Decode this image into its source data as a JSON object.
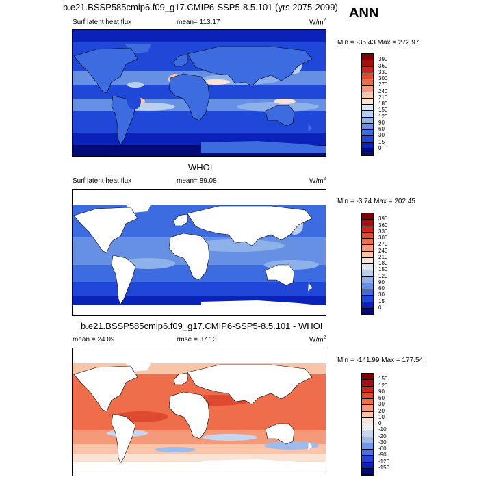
{
  "season": "ANN",
  "panels": [
    {
      "title": "b.e21.BSSP585cmip6.f09_g17.CMIP6-SSP5-8.5.101 (yrs 2075-2099)",
      "variable": "Surf latent heat flux",
      "stat_label": "mean= 113.17",
      "units_base": "W/m",
      "units_exp": "2",
      "minmax": "Min = -35.43 Max = 272.97",
      "levels": [
        "390",
        "360",
        "330",
        "300",
        "270",
        "240",
        "210",
        "180",
        "150",
        "120",
        "90",
        "60",
        "30",
        "15",
        "0"
      ],
      "colors": [
        "#7f0000",
        "#a50f0f",
        "#c8281c",
        "#de4a2f",
        "#ee6e4c",
        "#f59a78",
        "#f9c4a8",
        "#fbe3d3",
        "#dbe7f6",
        "#b9cff0",
        "#8fb1ea",
        "#6590e3",
        "#3c6ce0",
        "#1f47d8",
        "#0a22b8",
        "#020b78"
      ]
    },
    {
      "title": "WHOI",
      "variable": "Surf latent heat flux",
      "stat_label": "mean=  89.08",
      "units_base": "W/m",
      "units_exp": "2",
      "minmax": "Min =  -3.74 Max = 202.45",
      "levels": [
        "390",
        "360",
        "330",
        "300",
        "270",
        "240",
        "210",
        "180",
        "150",
        "120",
        "90",
        "60",
        "30",
        "15",
        "0"
      ],
      "colors": [
        "#7f0000",
        "#a50f0f",
        "#c8281c",
        "#de4a2f",
        "#ee6e4c",
        "#f59a78",
        "#f9c4a8",
        "#fbe3d3",
        "#dbe7f6",
        "#b9cff0",
        "#8fb1ea",
        "#6590e3",
        "#3c6ce0",
        "#1f47d8",
        "#0a22b8",
        "#020b78"
      ]
    },
    {
      "title": "b.e21.BSSP585cmip6.f09_g17.CMIP6-SSP5-8.5.101 - WHOI",
      "stat_label": "mean =  24.09",
      "stat2_label": "rmse =  37.13",
      "units_base": "W/m",
      "units_exp": "2",
      "minmax": "Min = -141.99 Max = 177.54",
      "levels": [
        "150",
        "120",
        "90",
        "60",
        "30",
        "20",
        "10",
        "0",
        "-10",
        "-20",
        "-30",
        "-60",
        "-90",
        "-120",
        "-150"
      ],
      "colors": [
        "#7f0000",
        "#a50f0f",
        "#c8281c",
        "#de4a2f",
        "#ee6e4c",
        "#f59a78",
        "#f9c4a8",
        "#fbe3d3",
        "#e8eefa",
        "#c6d6f2",
        "#9fbbec",
        "#7197e5",
        "#4a72df",
        "#2447d4",
        "#0a22b8",
        "#020b78"
      ]
    }
  ]
}
